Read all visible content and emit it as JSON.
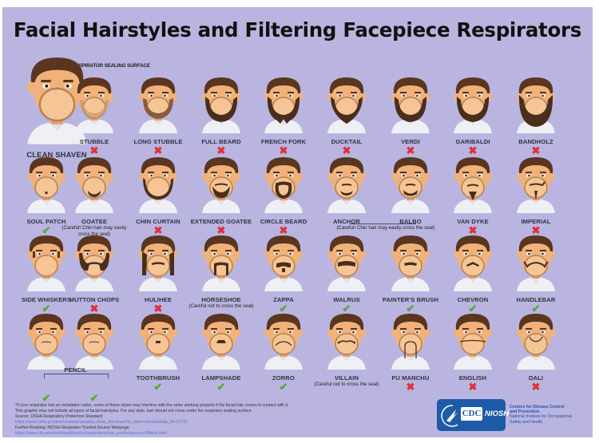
{
  "poster": {
    "title": "Facial Hairstyles and Filtering Facepiece Respirators",
    "background": "#b9b5e0",
    "annotation": "RESPIRATOR SEALING SURFACE",
    "status_colors": {
      "ok": "#54a838",
      "no": "#e0303b"
    }
  },
  "rows": [
    {
      "styles": [
        {
          "name": "CLEAN SHAVEN",
          "status": "ok",
          "beard": "none"
        },
        {
          "name": "STUBBLE",
          "status": "no",
          "beard": "stubble"
        },
        {
          "name": "LONG STUBBLE",
          "status": "no",
          "beard": "longstubble"
        },
        {
          "name": "FULL BEARD",
          "status": "no",
          "beard": "full"
        },
        {
          "name": "FRENCH FORK",
          "status": "no",
          "beard": "fork"
        },
        {
          "name": "DUCKTAIL",
          "status": "no",
          "beard": "ducktail"
        },
        {
          "name": "VERDI",
          "status": "no",
          "beard": "full"
        },
        {
          "name": "GARIBALDI",
          "status": "no",
          "beard": "full"
        },
        {
          "name": "BANDHOLZ",
          "status": "no",
          "beard": "bandholz"
        }
      ]
    },
    {
      "styles": [
        {
          "name": "SOUL PATCH",
          "status": "ok",
          "beard": "soulpatch"
        },
        {
          "name": "GOATEE",
          "status": "none",
          "note": "(Careful! Chin hair may easily cross the seal)",
          "beard": "goatee"
        },
        {
          "name": "CHIN CURTAIN",
          "status": "no",
          "beard": "chincurtain"
        },
        {
          "name": "EXTENDED GOATEE",
          "status": "no",
          "beard": "extgoatee"
        },
        {
          "name": "CIRCLE BEARD",
          "status": "no",
          "beard": "circle"
        },
        {
          "name": "ANCHOR",
          "status": "none",
          "beard": "anchor"
        },
        {
          "name": "BALBO",
          "status": "none",
          "beard": "balbo"
        },
        {
          "name": "VAN DYKE",
          "status": "no",
          "beard": "vandyke"
        },
        {
          "name": "IMPERIAL",
          "status": "no",
          "beard": "imperial"
        }
      ],
      "group_note": "(Careful! Chin hair may easily cross the seal)"
    },
    {
      "styles": [
        {
          "name": "SIDE WHISKERS",
          "status": "ok",
          "beard": "sidewhiskers"
        },
        {
          "name": "MUTTON CHOPS",
          "status": "no",
          "beard": "mutton"
        },
        {
          "name": "HULIHEE",
          "status": "no",
          "beard": "hulihee"
        },
        {
          "name": "HORSESHOE",
          "status": "none",
          "note": "(Careful not to cross the seal)",
          "beard": "horseshoe"
        },
        {
          "name": "ZAPPA",
          "status": "ok",
          "beard": "zappa"
        },
        {
          "name": "WALRUS",
          "status": "ok",
          "beard": "walrus"
        },
        {
          "name": "PAINTER'S BRUSH",
          "status": "ok",
          "beard": "painter"
        },
        {
          "name": "CHEVRON",
          "status": "ok",
          "beard": "chevron"
        },
        {
          "name": "HANDLEBAR",
          "status": "ok",
          "beard": "handlebar"
        }
      ]
    },
    {
      "styles": [
        {
          "name": "",
          "status": "ok",
          "beard": "pencil"
        },
        {
          "name": "",
          "status": "ok",
          "beard": "pencil"
        },
        {
          "name": "TOOTHBRUSH",
          "status": "ok",
          "beard": "toothbrush"
        },
        {
          "name": "LAMPSHADE",
          "status": "ok",
          "beard": "lampshade"
        },
        {
          "name": "ZORRO",
          "status": "ok",
          "beard": "zorro"
        },
        {
          "name": "VILLAIN",
          "status": "none",
          "note": "(Careful not to cross the seal)",
          "beard": "villain"
        },
        {
          "name": "FU MANCHU",
          "status": "no",
          "beard": "fumanchu"
        },
        {
          "name": "ENGLISH",
          "status": "no",
          "beard": "english"
        },
        {
          "name": "DALI",
          "status": "no",
          "beard": "dali"
        }
      ],
      "group_label": "PENCIL"
    }
  ],
  "footer": {
    "line1": "*If your respirator has an exhalation valve, some of these styles may interfere with the valve working properly if the facial hair comes in contact with it.",
    "line2": "This graphic may not include all types of facial hairstyles. For any style, hair should not cross under the respirator sealing surface.",
    "source_label": "Source: OSHA Respiratory Protection Standard",
    "source_url": "https://www.osha.gov/pls/oshaweb/owadisp.show_document?p_table=standards&p_id=12716",
    "further_label": "Further Reading: NIOSH Respirator Trusted-Source Webpage",
    "further_url": "https://www.cdc.gov/niosh/npptl/topics/respirators/disp_part/respsource3fittest.html"
  },
  "logo": {
    "cdc": "CDC",
    "niosh": "NIOSH",
    "org_line1": "Centers for Disease Control",
    "org_line2": "and Prevention",
    "org_line3": "National Institute for Occupational",
    "org_line4": "Safety and Health",
    "brand_color": "#1d5ba8"
  }
}
